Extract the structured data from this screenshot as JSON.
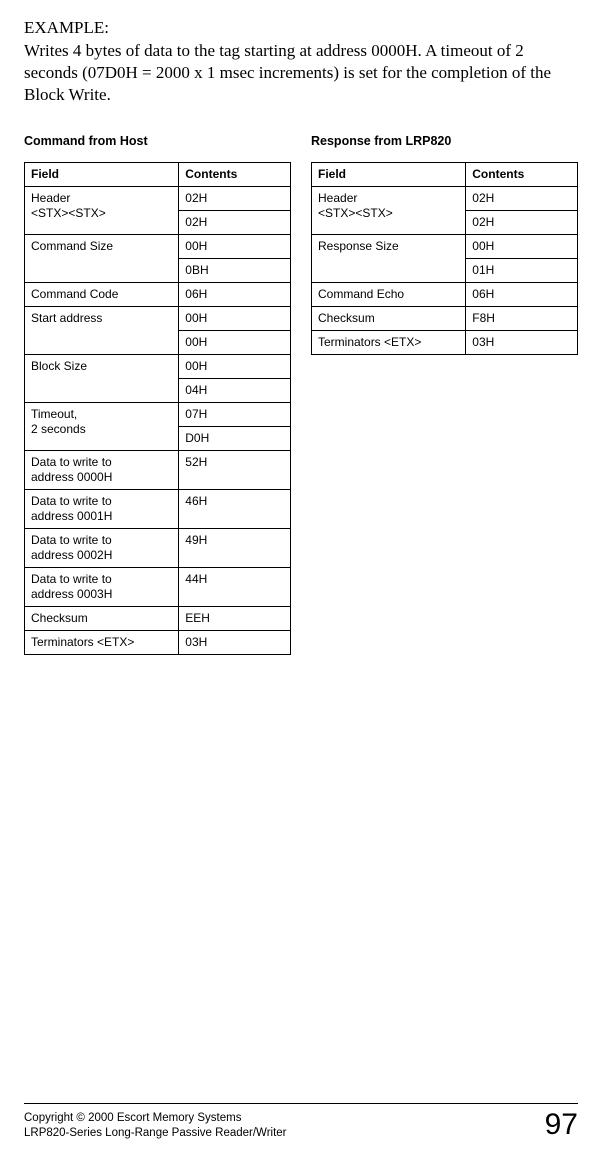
{
  "intro": {
    "label": "EXAMPLE:",
    "text": "Writes 4 bytes of data to the tag starting at address 0000H. A timeout of 2 seconds (07D0H = 2000 x 1 msec increments) is set for the completion of the Block Write."
  },
  "tables": {
    "left": {
      "title": "Command from Host",
      "headers": {
        "field": "Field",
        "contents": "Contents"
      },
      "rows": [
        {
          "field": "Header\n<STX><STX>",
          "contents": "02H",
          "rowspan_field": 2
        },
        {
          "field": "",
          "contents": "02H"
        },
        {
          "field": "Command Size",
          "contents": "00H",
          "rowspan_field": 2
        },
        {
          "field": "",
          "contents": "0BH"
        },
        {
          "field": "Command Code",
          "contents": "06H"
        },
        {
          "field": "Start address",
          "contents": "00H",
          "rowspan_field": 2
        },
        {
          "field": "",
          "contents": "00H"
        },
        {
          "field": "Block Size",
          "contents": "00H",
          "rowspan_field": 2
        },
        {
          "field": "",
          "contents": "04H"
        },
        {
          "field": "Timeout,\n2 seconds",
          "contents": "07H",
          "rowspan_field": 2
        },
        {
          "field": "",
          "contents": "D0H"
        },
        {
          "field": "Data to write to\naddress 0000H",
          "contents": "52H"
        },
        {
          "field": "Data to write to\naddress 0001H",
          "contents": "46H"
        },
        {
          "field": "Data to write to\naddress 0002H",
          "contents": "49H"
        },
        {
          "field": "Data to write to\naddress 0003H",
          "contents": "44H"
        },
        {
          "field": "Checksum",
          "contents": "EEH"
        },
        {
          "field": "Terminators <ETX>",
          "contents": "03H"
        }
      ]
    },
    "right": {
      "title": "Response from LRP820",
      "headers": {
        "field": "Field",
        "contents": "Contents"
      },
      "rows": [
        {
          "field": "Header\n<STX><STX>",
          "contents": "02H",
          "rowspan_field": 2
        },
        {
          "field": "",
          "contents": "02H"
        },
        {
          "field": "Response Size",
          "contents": "00H",
          "rowspan_field": 2
        },
        {
          "field": "",
          "contents": "01H"
        },
        {
          "field": "Command Echo",
          "contents": "06H"
        },
        {
          "field": "Checksum",
          "contents": "F8H"
        },
        {
          "field": "Terminators <ETX>",
          "contents": "03H"
        }
      ]
    }
  },
  "footer": {
    "line1": "Copyright © 2000 Escort Memory Systems",
    "line2": "LRP820-Series Long-Range Passive Reader/Writer",
    "page": "97"
  }
}
